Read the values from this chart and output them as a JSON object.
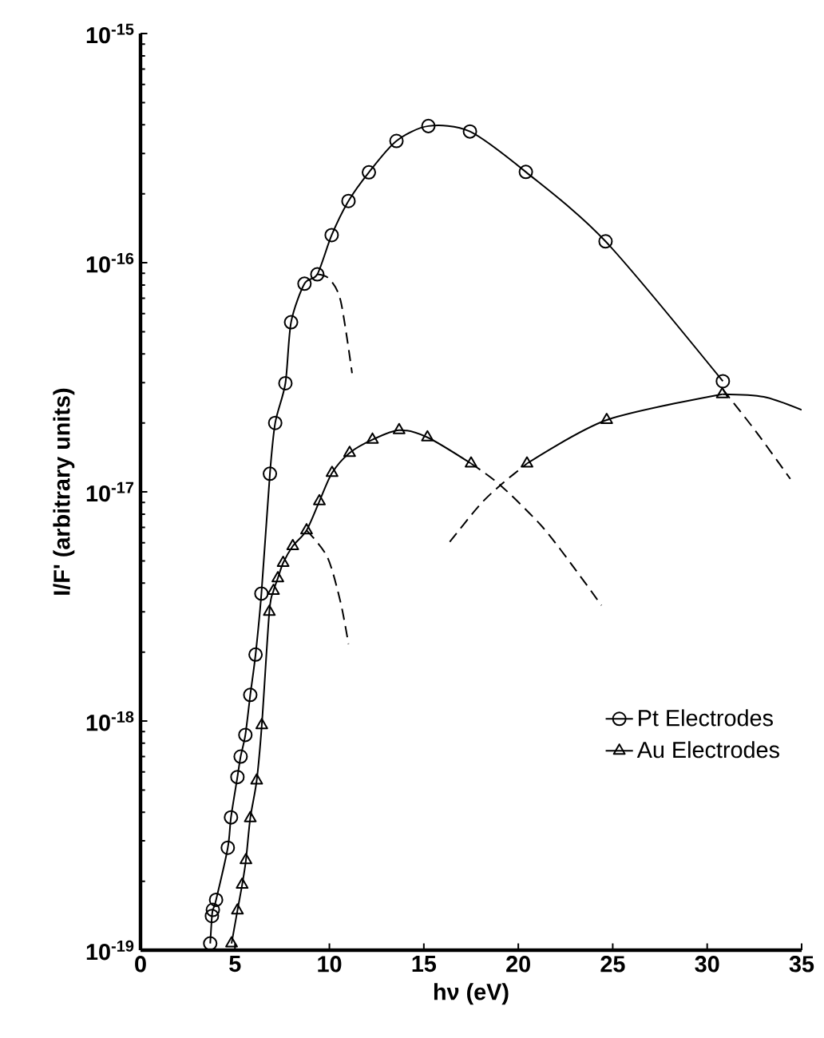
{
  "chart_data": {
    "type": "line",
    "xlabel": "hν (eV)",
    "ylabel": "I/F' (arbitrary units)",
    "log": "y",
    "xlim": [
      0,
      35
    ],
    "xticks": [
      0,
      5,
      10,
      15,
      20,
      25,
      30,
      35
    ],
    "ylim": [
      1e-19,
      1e-15
    ],
    "yticks": [
      {
        "value": 1e-19,
        "label": "10$^{-19}$"
      },
      {
        "value": 1e-18,
        "label": "10$^{-18}$"
      },
      {
        "value": 1e-17,
        "label": "10$^{-17}$"
      },
      {
        "value": 1e-16,
        "label": "10$^{-16}$"
      },
      {
        "value": 1e-15,
        "label": "10$^{-15}$"
      }
    ],
    "grid": false,
    "legend": "bottom right",
    "series": [
      {
        "name": "Pt Electrodes",
        "color": "#000000",
        "marker": "circle",
        "line_style": "solid",
        "x": [
          3.69,
          3.78,
          3.83,
          4.0,
          4.62,
          4.79,
          5.13,
          5.3,
          5.55,
          5.81,
          6.09,
          6.4,
          6.85,
          7.13,
          7.67,
          7.97,
          8.68,
          9.36,
          10.12,
          11.01,
          12.09,
          13.55,
          15.24,
          17.44,
          20.4,
          24.62,
          30.83
        ],
        "values": [
          1.07e-19,
          1.41e-19,
          1.5e-19,
          1.66e-19,
          2.8e-19,
          3.8e-19,
          5.7e-19,
          7e-19,
          8.7e-19,
          1.3e-18,
          1.95e-18,
          3.6e-18,
          1.2e-17,
          2e-17,
          2.98e-17,
          5.5e-17,
          8.1e-17,
          8.9e-17,
          1.32e-16,
          1.86e-16,
          2.48e-16,
          3.4e-16,
          3.95e-16,
          3.74e-16,
          2.49e-16,
          1.24e-16,
          3.04e-17
        ]
      },
      {
        "name": "Au Electrodes",
        "color": "#000000",
        "marker": "triangle",
        "line_style": "solid",
        "x": [
          4.82,
          5.13,
          5.38,
          5.58,
          5.81,
          6.15,
          6.42,
          6.82,
          7.04,
          7.27,
          7.55,
          8.06,
          8.79,
          9.47,
          10.14,
          11.07,
          12.28,
          13.69,
          15.19,
          17.5,
          19.0,
          20.46,
          24.68,
          30.8
        ],
        "values": [
          1.07e-19,
          1.49e-19,
          1.93e-19,
          2.47e-19,
          3.77e-19,
          5.5e-19,
          9.6e-19,
          3e-18,
          3.7e-18,
          4.2e-18,
          4.9e-18,
          5.8e-18,
          6.8e-18,
          9.1e-18,
          1.21e-17,
          1.48e-17,
          1.69e-17,
          1.86e-17,
          1.73e-17,
          1.33e-17,
          null,
          1.33e-17,
          2.06e-17,
          2.67e-17
        ]
      },
      {
        "color": "#000000",
        "marker": "none",
        "line_style": "solid",
        "x": [
          30.8,
          33.0,
          35.0
        ],
        "values": [
          2.67e-17,
          2.6e-17,
          2.28e-17
        ]
      },
      {
        "color": "#000000",
        "marker": "none",
        "line_style": "dashed",
        "x": [
          9.36,
          10.0,
          10.6,
          11.2
        ],
        "values": [
          8.9e-17,
          8.5e-17,
          6.8e-17,
          3.3e-17
        ]
      },
      {
        "color": "#000000",
        "marker": "none",
        "line_style": "dashed",
        "x": [
          8.79,
          9.89,
          10.59,
          11.01
        ],
        "values": [
          6.8e-18,
          5.2e-18,
          3.3e-18,
          2.17e-18
        ]
      },
      {
        "color": "#000000",
        "marker": "none",
        "line_style": "dashed",
        "x": [
          17.5,
          19.05,
          21.3,
          23.27,
          24.4
        ],
        "values": [
          1.33e-17,
          1.07e-17,
          7e-18,
          4.3e-18,
          3.2e-18
        ]
      },
      {
        "color": "#000000",
        "marker": "none",
        "line_style": "dashed",
        "x": [
          16.37,
          17.92,
          19.05,
          20.46
        ],
        "values": [
          6.05e-18,
          8.7e-18,
          1.07e-17,
          1.33e-17
        ]
      },
      {
        "color": "#000000",
        "marker": "none",
        "line_style": "dashed",
        "x": [
          30.83,
          32.57,
          34.4
        ],
        "values": [
          2.8e-17,
          1.84e-17,
          1.14e-17
        ]
      }
    ]
  }
}
